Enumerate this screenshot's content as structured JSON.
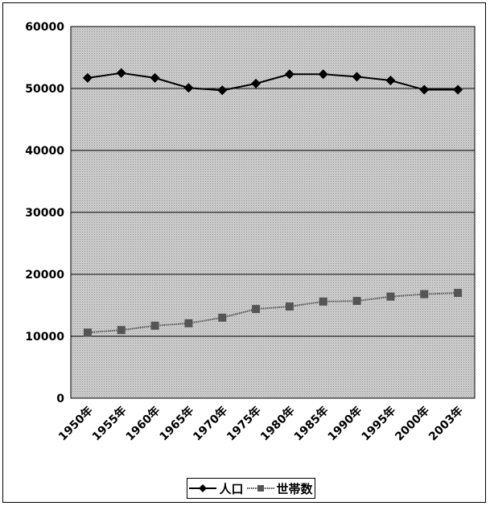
{
  "chart_data": {
    "type": "line",
    "categories": [
      "1950年",
      "1955年",
      "1960年",
      "1965年",
      "1970年",
      "1975年",
      "1980年",
      "1985年",
      "1990年",
      "1995年",
      "2000年",
      "2003年"
    ],
    "series": [
      {
        "name": "人口",
        "marker": "diamond",
        "color": "#000000",
        "values": [
          51700,
          52500,
          51700,
          50100,
          49700,
          50800,
          52300,
          52300,
          51900,
          51300,
          49800,
          49800
        ]
      },
      {
        "name": "世帯数",
        "marker": "square",
        "color": "#555555",
        "values": [
          10600,
          11000,
          11700,
          12100,
          13000,
          14400,
          14800,
          15600,
          15700,
          16400,
          16800,
          17000
        ]
      }
    ],
    "ylim": [
      0,
      60000
    ],
    "yticks": [
      "0",
      "10000",
      "20000",
      "30000",
      "40000",
      "50000",
      "60000"
    ],
    "grid": true,
    "legend_position": "bottom"
  },
  "legend": {
    "series1_label": "人口",
    "series2_label": "世帯数"
  }
}
